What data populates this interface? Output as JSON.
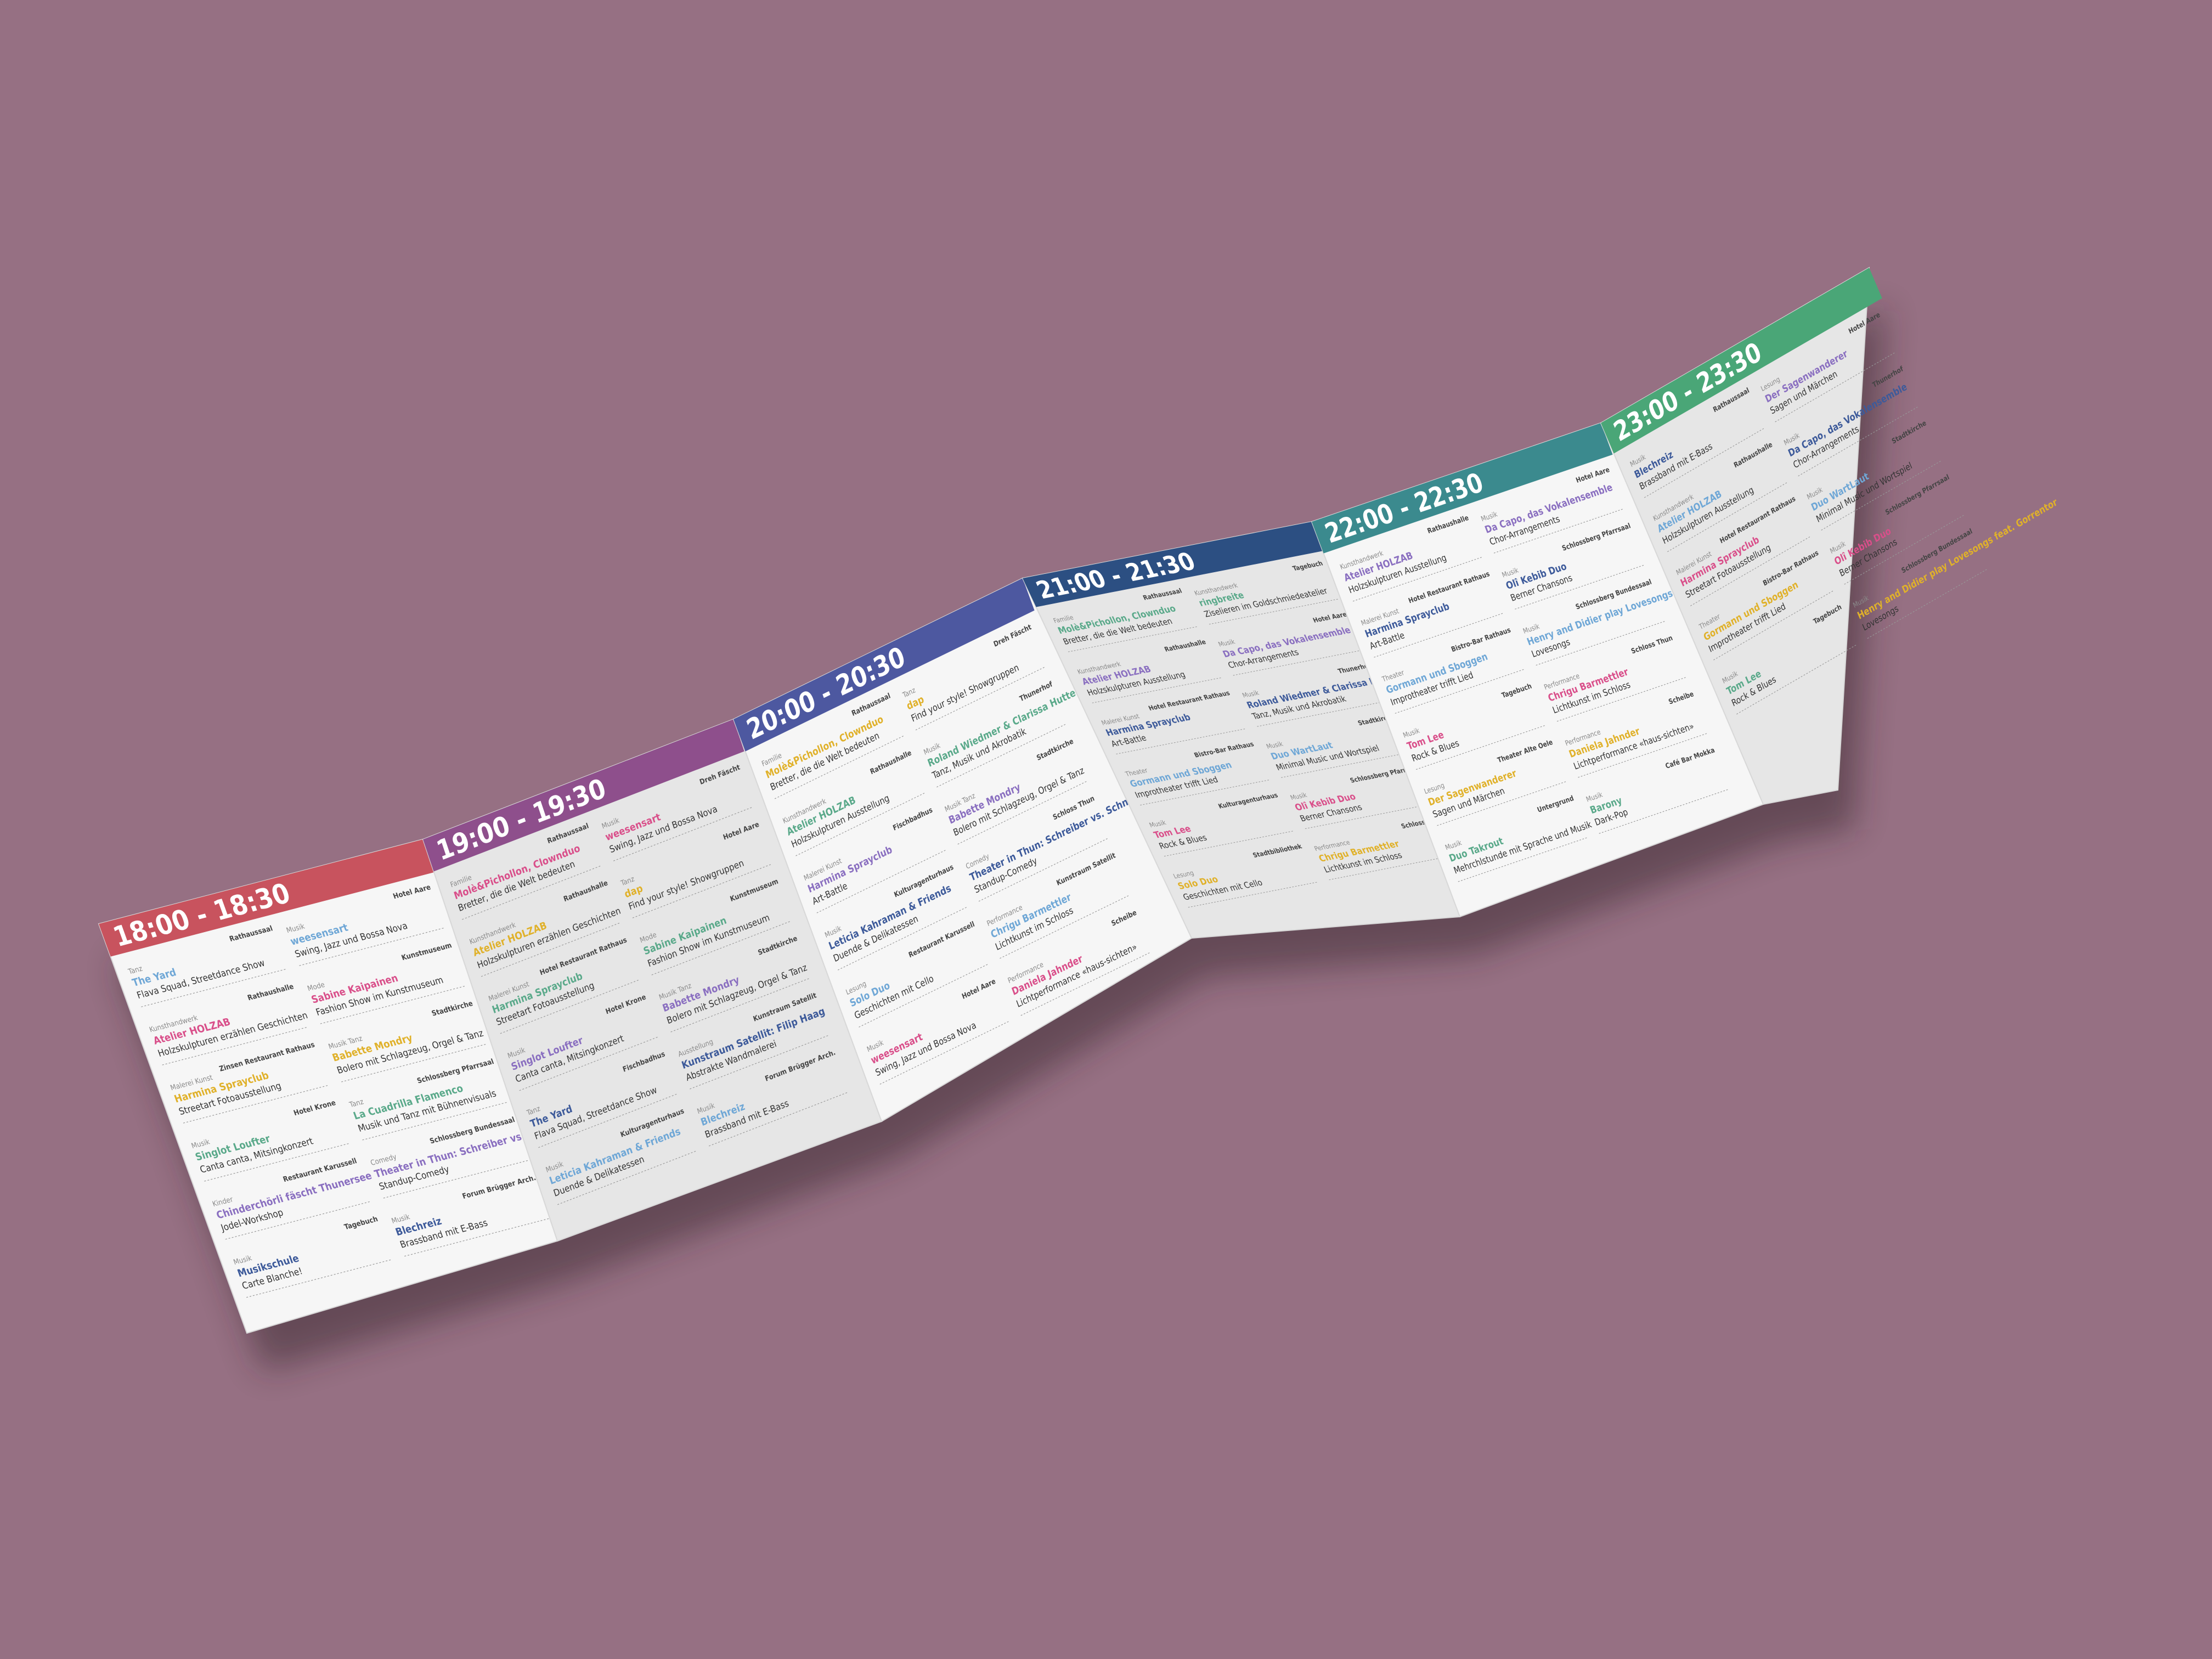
{
  "panels": [
    {
      "time": "18:00 - 18:30",
      "color": "#c8535e",
      "entries": [
        {
          "cat": "Tanz",
          "title": "The Yard",
          "desc": "Flava Squad, Streetdance Show",
          "loc": "Rathaussaal"
        },
        {
          "cat": "Kunsthandwerk",
          "title": "Atelier HOLZAB",
          "desc": "Holzskulpturen erzählen Geschichten",
          "loc": "Rathaushalle"
        },
        {
          "cat": "Malerei Kunst",
          "title": "Harmina Sprayclub",
          "desc": "Streetart Fotoausstellung",
          "loc": "Zinsen Restaurant Rathaus"
        },
        {
          "cat": "Musik",
          "title": "Singlot Loufter",
          "desc": "Canta canta, Mitsingkonzert",
          "loc": "Hotel Krone"
        },
        {
          "cat": "Kinder",
          "title": "Chinderchörli fäscht Thunersee",
          "desc": "Jodel-Workshop",
          "loc": "Restaurant Karussell"
        },
        {
          "cat": "Musik",
          "title": "Musikschule",
          "desc": "Carte Blanche!",
          "loc": "Tagebuch"
        },
        {
          "cat": "Musik",
          "title": "weesensart",
          "desc": "Swing, Jazz und Bossa Nova",
          "loc": "Hotel Aare"
        },
        {
          "cat": "Mode",
          "title": "Sabine Kaipainen",
          "desc": "Fashion Show im Kunstmuseum",
          "loc": "Kunstmuseum"
        },
        {
          "cat": "Musik Tanz",
          "title": "Babette Mondry",
          "desc": "Bolero mit Schlagzeug, Orgel & Tanz",
          "loc": "Stadtkirche"
        },
        {
          "cat": "Tanz",
          "title": "La Cuadrilla Flamenco",
          "desc": "Musik und Tanz mit Bühnenvisuals",
          "loc": "Schlossberg Pfarrsaal"
        },
        {
          "cat": "Comedy",
          "title": "Theater in Thun: Schreiber vs. Schneider",
          "desc": "Standup-Comedy",
          "loc": "Schlossberg Bundessaal"
        },
        {
          "cat": "Musik",
          "title": "Blechreiz",
          "desc": "Brassband mit E-Bass",
          "loc": "Forum Brügger Arch."
        }
      ]
    },
    {
      "time": "19:00 - 19:30",
      "color": "#8e4f8c",
      "entries": [
        {
          "cat": "Familie",
          "title": "Molè&Pichollon, Clownduo",
          "desc": "Bretter, die die Welt bedeuten",
          "loc": "Rathaussaal"
        },
        {
          "cat": "Kunsthandwerk",
          "title": "Atelier HOLZAB",
          "desc": "Holzskulpturen erzählen Geschichten",
          "loc": "Rathaushalle"
        },
        {
          "cat": "Malerei Kunst",
          "title": "Harmina Sprayclub",
          "desc": "Streetart Fotoausstellung",
          "loc": "Hotel Restaurant Rathaus"
        },
        {
          "cat": "Musik",
          "title": "Singlot Loufter",
          "desc": "Canta canta, Mitsingkonzert",
          "loc": "Hotel Krone"
        },
        {
          "cat": "Tanz",
          "title": "The Yard",
          "desc": "Flava Squad, Streetdance Show",
          "loc": "Fischbadhus"
        },
        {
          "cat": "Musik",
          "title": "Leticia Kahraman & Friends",
          "desc": "Duende & Delikatessen",
          "loc": "Kulturagenturhaus"
        },
        {
          "cat": "Musik",
          "title": "weesensart",
          "desc": "Swing, Jazz und Bossa Nova",
          "loc": "Dreh Fäscht"
        },
        {
          "cat": "Tanz",
          "title": "dap",
          "desc": "Find your style! Showgruppen",
          "loc": "Hotel Aare"
        },
        {
          "cat": "Mode",
          "title": "Sabine Kaipainen",
          "desc": "Fashion Show im Kunstmuseum",
          "loc": "Kunstmuseum"
        },
        {
          "cat": "Musik Tanz",
          "title": "Babette Mondry",
          "desc": "Bolero mit Schlagzeug, Orgel & Tanz",
          "loc": "Stadtkirche"
        },
        {
          "cat": "Ausstellung",
          "title": "Kunstraum Satellit: Filip Haag",
          "desc": "Abstrakte Wandmalerei",
          "loc": "Kunstraum Satellit"
        },
        {
          "cat": "Musik",
          "title": "Blechreiz",
          "desc": "Brassband mit E-Bass",
          "loc": "Forum Brügger Arch."
        }
      ]
    },
    {
      "time": "20:00 - 20:30",
      "color": "#4d58a0",
      "entries": [
        {
          "cat": "Familie",
          "title": "Molè&Pichollon, Clownduo",
          "desc": "Bretter, die die Welt bedeuten",
          "loc": "Rathaussaal"
        },
        {
          "cat": "Kunsthandwerk",
          "title": "Atelier HOLZAB",
          "desc": "Holzskulpturen Ausstellung",
          "loc": "Rathaushalle"
        },
        {
          "cat": "Malerei Kunst",
          "title": "Harmina Sprayclub",
          "desc": "Art-Battle",
          "loc": "Fischbadhus"
        },
        {
          "cat": "Musik",
          "title": "Leticia Kahraman & Friends",
          "desc": "Duende & Delikatessen",
          "loc": "Kulturagenturhaus"
        },
        {
          "cat": "Lesung",
          "title": "Solo Duo",
          "desc": "Geschichten mit Cello",
          "loc": "Restaurant Karussell"
        },
        {
          "cat": "Musik",
          "title": "weesensart",
          "desc": "Swing, Jazz und Bossa Nova",
          "loc": "Hotel Aare"
        },
        {
          "cat": "Tanz",
          "title": "dap",
          "desc": "Find your style! Showgruppen",
          "loc": "Dreh Fäscht"
        },
        {
          "cat": "Musik",
          "title": "Roland Wiedmer & Clarissa Hutter",
          "desc": "Tanz, Musik und Akrobatik",
          "loc": "Thunerhof"
        },
        {
          "cat": "Musik Tanz",
          "title": "Babette Mondry",
          "desc": "Bolero mit Schlagzeug, Orgel & Tanz",
          "loc": "Stadtkirche"
        },
        {
          "cat": "Comedy",
          "title": "Theater in Thun: Schreiber vs. Schneider",
          "desc": "Standup-Comedy",
          "loc": "Schloss Thun"
        },
        {
          "cat": "Performance",
          "title": "Chrigu Barmettler",
          "desc": "Lichtkunst im Schloss",
          "loc": "Kunstraum Satellit"
        },
        {
          "cat": "Performance",
          "title": "Daniela Jahnder",
          "desc": "Lichtperformance «haus-sichten»",
          "loc": "Scheibe"
        }
      ]
    },
    {
      "time": "21:00 - 21:30",
      "color": "#2c4f82",
      "entries": [
        {
          "cat": "Familie",
          "title": "Molè&Pichollon, Clownduo",
          "desc": "Bretter, die die Welt bedeuten",
          "loc": "Rathaussaal"
        },
        {
          "cat": "Kunsthandwerk",
          "title": "Atelier HOLZAB",
          "desc": "Holzskulpturen Ausstellung",
          "loc": "Rathaushalle"
        },
        {
          "cat": "Malerei Kunst",
          "title": "Harmina Sprayclub",
          "desc": "Art-Battle",
          "loc": "Hotel Restaurant Rathaus"
        },
        {
          "cat": "Theater",
          "title": "Gormann und Sboggen",
          "desc": "Improtheater trifft Lied",
          "loc": "Bistro-Bar Rathaus"
        },
        {
          "cat": "Musik",
          "title": "Tom Lee",
          "desc": "Rock & Blues",
          "loc": "Kulturagenturhaus"
        },
        {
          "cat": "Lesung",
          "title": "Solo Duo",
          "desc": "Geschichten mit Cello",
          "loc": "Stadtbibliothek"
        },
        {
          "cat": "Kunsthandwerk",
          "title": "ringbreite",
          "desc": "Ziselieren im Goldschmiedeatelier",
          "loc": "Tagebuch"
        },
        {
          "cat": "Musik",
          "title": "Da Capo, das Vokalensemble",
          "desc": "Chor-Arrangements",
          "loc": "Hotel Aare"
        },
        {
          "cat": "Musik",
          "title": "Roland Wiedmer & Clarissa Hutter",
          "desc": "Tanz, Musik und Akrobatik",
          "loc": "Thunerhof"
        },
        {
          "cat": "Musik",
          "title": "Duo WartLaut",
          "desc": "Minimal Music und Wortspiel",
          "loc": "Stadtkirche"
        },
        {
          "cat": "Musik",
          "title": "Olî Kebib Duo",
          "desc": "Berner Chansons",
          "loc": "Schlossberg Pfarrsaal"
        },
        {
          "cat": "Performance",
          "title": "Chrigu Barmettler",
          "desc": "Lichtkunst im Schloss",
          "loc": "Schloss Thun"
        }
      ]
    },
    {
      "time": "22:00 - 22:30",
      "color": "#3b8a8e",
      "entries": [
        {
          "cat": "Kunsthandwerk",
          "title": "Atelier HOLZAB",
          "desc": "Holzskulpturen Ausstellung",
          "loc": "Rathaushalle"
        },
        {
          "cat": "Malerei Kunst",
          "title": "Harmina Sprayclub",
          "desc": "Art-Battle",
          "loc": "Hotel Restaurant Rathaus"
        },
        {
          "cat": "Theater",
          "title": "Gormann und Sboggen",
          "desc": "Improtheater trifft Lied",
          "loc": "Bistro-Bar Rathaus"
        },
        {
          "cat": "Musik",
          "title": "Tom Lee",
          "desc": "Rock & Blues",
          "loc": "Tagebuch"
        },
        {
          "cat": "Lesung",
          "title": "Der Sagenwanderer",
          "desc": "Sagen und Märchen",
          "loc": "Theater Alte Oele"
        },
        {
          "cat": "Musik",
          "title": "Duo Takrout",
          "desc": "Mehrchlstunde mit Sprache und Musik",
          "loc": "Untergrund"
        },
        {
          "cat": "Musik",
          "title": "Da Capo, das Vokalensemble",
          "desc": "Chor-Arrangements",
          "loc": "Hotel Aare"
        },
        {
          "cat": "Musik",
          "title": "Olî Kebib Duo",
          "desc": "Berner Chansons",
          "loc": "Schlossberg Pfarrsaal"
        },
        {
          "cat": "Musik",
          "title": "Henry and Didier play Lovesongs feat. Gorrentor",
          "desc": "Lovesongs",
          "loc": "Schlossberg Bundessaal"
        },
        {
          "cat": "Performance",
          "title": "Chrigu Barmettler",
          "desc": "Lichtkunst im Schloss",
          "loc": "Schloss Thun"
        },
        {
          "cat": "Performance",
          "title": "Daniela Jahnder",
          "desc": "Lichtperformance «haus-sichten»",
          "loc": "Scheibe"
        },
        {
          "cat": "Musik",
          "title": "Barony",
          "desc": "Dark-Pop",
          "loc": "Café Bar Mokka"
        }
      ]
    },
    {
      "time": "23:00 - 23:30",
      "color": "#4aa677",
      "entries": [
        {
          "cat": "Musik",
          "title": "Blechreiz",
          "desc": "Brassband mit E-Bass",
          "loc": "Rathaussaal"
        },
        {
          "cat": "Kunsthandwerk",
          "title": "Atelier HOLZAB",
          "desc": "Holzskulpturen Ausstellung",
          "loc": "Rathaushalle"
        },
        {
          "cat": "Malerei Kunst",
          "title": "Harmina Sprayclub",
          "desc": "Streetart Fotoausstellung",
          "loc": "Hotel Restaurant Rathaus"
        },
        {
          "cat": "Theater",
          "title": "Gormann und Sboggen",
          "desc": "Improtheater trifft Lied",
          "loc": "Bistro-Bar Rathaus"
        },
        {
          "cat": "Musik",
          "title": "Tom Lee",
          "desc": "Rock & Blues",
          "loc": "Tagebuch"
        },
        {
          "cat": "Lesung",
          "title": "Der Sagenwanderer",
          "desc": "Sagen und Märchen",
          "loc": "Hotel Aare"
        },
        {
          "cat": "Musik",
          "title": "Da Capo, das Vokalensemble",
          "desc": "Chor-Arrangements",
          "loc": "Thunerhof"
        },
        {
          "cat": "Musik",
          "title": "Duo WartLaut",
          "desc": "Minimal Music und Wortspiel",
          "loc": "Stadtkirche"
        },
        {
          "cat": "Musik",
          "title": "Olî Kebib Duo",
          "desc": "Berner Chansons",
          "loc": "Schlossberg Pfarrsaal"
        },
        {
          "cat": "Musik",
          "title": "Henry and Didier play Lovesongs feat. Gorrentor",
          "desc": "Lovesongs",
          "loc": "Schlossberg Bundessaal"
        }
      ]
    }
  ]
}
